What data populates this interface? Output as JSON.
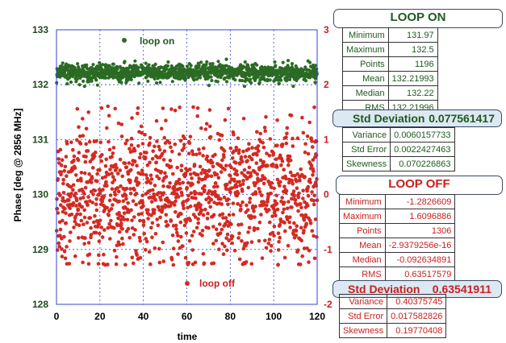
{
  "chart_data": {
    "type": "scatter",
    "xlabel": "time",
    "ylabel": "Phase [deg @ 2856 MHz]",
    "xlim": [
      0,
      120
    ],
    "ylim": [
      128,
      133
    ],
    "y2lim": [
      -2,
      3
    ],
    "x_ticks": [
      "0",
      "20",
      "40",
      "60",
      "80",
      "100",
      "120"
    ],
    "y_ticks": [
      "128",
      "129",
      "130",
      "131",
      "132",
      "133"
    ],
    "y2_ticks": [
      "-2",
      "-1",
      "0",
      "1",
      "2",
      "3"
    ],
    "grid": true,
    "series": [
      {
        "name": "loop on",
        "axis": "left",
        "color": "#2b6b24",
        "points": 1196,
        "mean": 132.21993,
        "std": 0.077561417,
        "min": 131.97,
        "max": 132.5
      },
      {
        "name": "loop off",
        "axis": "right",
        "color": "#d42a22",
        "points": 1306,
        "mean": 0,
        "std": 0.63541911,
        "min": -1.2826609,
        "max": 1.6096886
      }
    ],
    "legend": {
      "on_label": "loop on",
      "off_label": "loop off"
    }
  },
  "stats_on": {
    "title": "LOOP ON",
    "rows": [
      {
        "label": "Minimum",
        "value": "131.97"
      },
      {
        "label": "Maximum",
        "value": "132.5"
      },
      {
        "label": "Points",
        "value": "1196"
      },
      {
        "label": "Mean",
        "value": "132.21993"
      },
      {
        "label": "Median",
        "value": "132.22"
      },
      {
        "label": "RMS",
        "value": "132.21996"
      }
    ],
    "highlight": {
      "label": "Std Deviation",
      "value": "0.077561417"
    },
    "rows2": [
      {
        "label": "Variance",
        "value": "0.0060157733"
      },
      {
        "label": "Std Error",
        "value": "0.0022427463"
      },
      {
        "label": "Skewness",
        "value": "0.070226863"
      }
    ]
  },
  "stats_off": {
    "title": "LOOP OFF",
    "rows": [
      {
        "label": "Minimum",
        "value": "-1.2826609"
      },
      {
        "label": "Maximum",
        "value": "1.6096886"
      },
      {
        "label": "Points",
        "value": "1306"
      },
      {
        "label": "Mean",
        "value": "-2.9379256e-16"
      },
      {
        "label": "Median",
        "value": "-0.092634891"
      },
      {
        "label": "RMS",
        "value": "0.63517579"
      }
    ],
    "highlight": {
      "label": "Std Deviation",
      "value": "0.63541911"
    },
    "rows2": [
      {
        "label": "Variance",
        "value": "0.40375745"
      },
      {
        "label": "Std Error",
        "value": "0.017582826"
      },
      {
        "label": "Skewness",
        "value": "0.19770408"
      }
    ]
  }
}
